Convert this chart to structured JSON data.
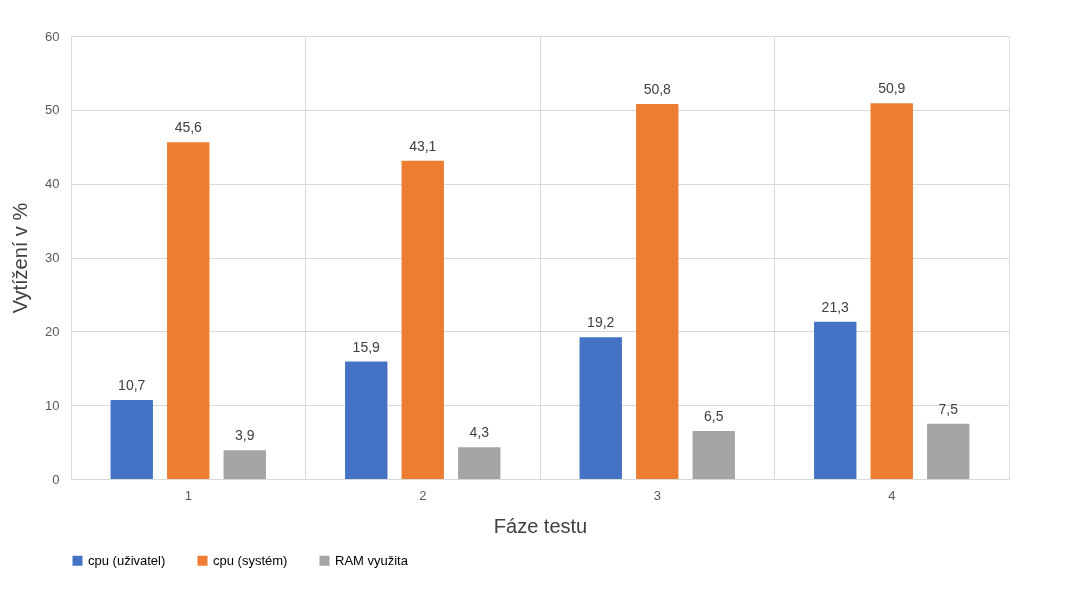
{
  "chart_data": {
    "type": "bar",
    "xlabel": "Fáze testu",
    "ylabel": "Vytížení v %",
    "categories": [
      "1",
      "2",
      "3",
      "4"
    ],
    "series": [
      {
        "name": "cpu (uživatel)",
        "color": "#4472c4",
        "values": [
          10.7,
          15.9,
          19.2,
          21.3
        ],
        "value_labels": [
          "10,7",
          "15,9",
          "19,2",
          "21,3"
        ]
      },
      {
        "name": "cpu (systém)",
        "color": "#ed7d31",
        "values": [
          45.6,
          43.1,
          50.8,
          50.9
        ],
        "value_labels": [
          "45,6",
          "43,1",
          "50,8",
          "50,9"
        ]
      },
      {
        "name": "RAM využita",
        "color": "#a5a5a5",
        "values": [
          3.9,
          4.3,
          6.5,
          7.5
        ],
        "value_labels": [
          "3,9",
          "4,3",
          "6,5",
          "7,5"
        ]
      }
    ],
    "ylim": [
      0,
      60
    ],
    "yticks": [
      0,
      10,
      20,
      30,
      40,
      50,
      60
    ],
    "grid": true,
    "legend": "bottom"
  }
}
